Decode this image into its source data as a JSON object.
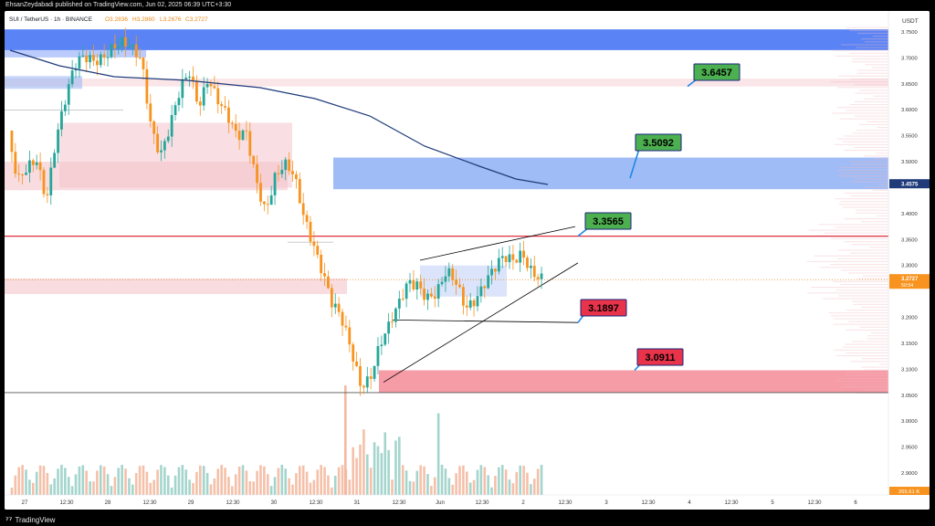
{
  "header": {
    "publisher": "EhsanZeydabadi published on TradingView.com, Jun 02, 2025 06:39 UTC+3:30"
  },
  "legend": {
    "symbol": "SUI / TetherUS · 1h · BINANCE",
    "open": "O3.2836",
    "high": "H3.2860",
    "low": "L3.2676",
    "close": "C3.2727"
  },
  "footer": {
    "logo_text": "TradingView"
  },
  "price_axis": {
    "currency": "USDT",
    "ticks": [
      "3.7500",
      "3.7000",
      "3.6500",
      "3.6000",
      "3.5500",
      "3.5000",
      "3.4000",
      "3.3500",
      "3.3000",
      "3.2000",
      "3.1500",
      "3.1000",
      "3.0500",
      "3.0000",
      "2.9500",
      "2.9000"
    ],
    "ma_badge": "3.4575",
    "last_badge": "3.2727",
    "countdown": "50:54",
    "volume_badge": "265.61 K"
  },
  "time_axis": {
    "labels": [
      "27",
      "12:30",
      "28",
      "12:30",
      "29",
      "12:30",
      "30",
      "12:30",
      "31",
      "12:30",
      "Jun",
      "12:30",
      "2",
      "12:30",
      "3",
      "12:30",
      "4",
      "12:30",
      "5",
      "12:30",
      "6"
    ]
  },
  "annotations": [
    {
      "text": "3.6457",
      "kind": "target"
    },
    {
      "text": "3.5092",
      "kind": "target"
    },
    {
      "text": "3.3565",
      "kind": "target"
    },
    {
      "text": "3.1897",
      "kind": "support"
    },
    {
      "text": "3.0911",
      "kind": "support"
    }
  ],
  "colors": {
    "up": "#26a69a",
    "down": "#f7931e",
    "ma": "#1f3b7a",
    "supply_zone": "#3d6ef5",
    "pink_zone": "#f4c5cc",
    "red_zone": "#f48b96",
    "resistance_line": "#e0303e",
    "target_label": "#4caf50",
    "support_label": "#e8334a",
    "label_border": "#1a237e"
  },
  "chart_data": {
    "type": "candlestick",
    "symbol": "SUI / TetherUS",
    "interval": "1h",
    "exchange": "BINANCE",
    "ylim": [
      2.86,
      3.765
    ],
    "levels": {
      "resistance": 3.3565,
      "targets": [
        3.6457,
        3.5092,
        3.3565
      ],
      "supports": [
        3.1897,
        3.0911
      ],
      "low_line": 3.055
    },
    "zones": [
      {
        "kind": "supply",
        "from": 3.715,
        "to": 3.755
      },
      {
        "kind": "supply",
        "from": 3.447,
        "to": 3.508
      },
      {
        "kind": "demand",
        "from": 3.055,
        "to": 3.098
      }
    ],
    "x": [
      "27",
      "12:30",
      "28",
      "12:30",
      "29",
      "12:30",
      "30",
      "12:30",
      "31",
      "12:30",
      "Jun",
      "12:30",
      "2",
      "12:30",
      "3",
      "12:30",
      "4",
      "12:30",
      "5",
      "12:30",
      "6"
    ],
    "close_path": [
      3.56,
      3.45,
      3.47,
      3.5,
      3.44,
      3.56,
      3.62,
      3.67,
      3.69,
      3.7,
      3.72,
      3.73,
      3.72,
      3.7,
      3.69,
      3.58,
      3.53,
      3.57,
      3.62,
      3.66,
      3.61,
      3.68,
      3.63,
      3.58,
      3.53,
      3.55,
      3.48,
      3.42,
      3.47,
      3.48,
      3.46,
      3.4,
      3.36,
      3.3,
      3.22,
      3.18,
      3.13,
      3.08,
      3.1,
      3.15,
      3.17,
      3.21,
      3.27,
      3.28,
      3.25,
      3.24,
      3.27,
      3.26,
      3.23,
      3.25,
      3.27,
      3.28,
      3.3,
      3.31,
      3.34,
      3.3,
      3.27
    ]
  }
}
